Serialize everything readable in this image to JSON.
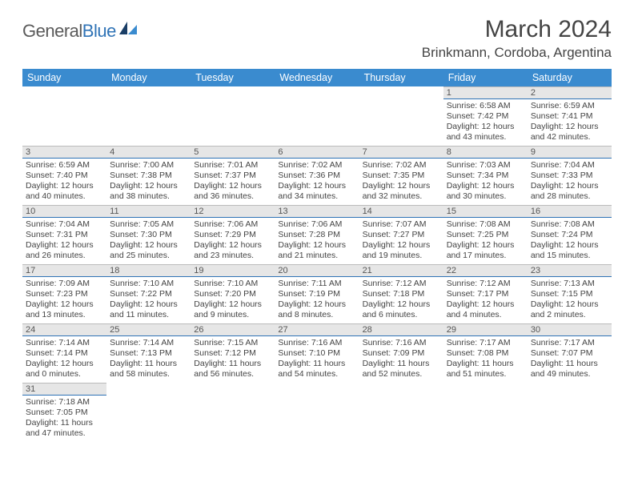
{
  "logo": {
    "text1": "General",
    "text2": "Blue",
    "accent": "#2f73b6",
    "dark": "#1a3e66"
  },
  "header": {
    "month_title": "March 2024",
    "location": "Brinkmann, Cordoba, Argentina"
  },
  "styling": {
    "header_bg": "#3a8bcf",
    "header_text": "#ffffff",
    "daynum_bg": "#e6e6e6",
    "daynum_border": "#2f73b6",
    "body_text": "#444444",
    "page_bg": "#ffffff",
    "day_font_size": 10.5,
    "header_font_size": 12.5,
    "title_font_size": 30,
    "location_font_size": 17
  },
  "columns": [
    "Sunday",
    "Monday",
    "Tuesday",
    "Wednesday",
    "Thursday",
    "Friday",
    "Saturday"
  ],
  "weeks": [
    [
      {
        "day": null
      },
      {
        "day": null
      },
      {
        "day": null
      },
      {
        "day": null
      },
      {
        "day": null
      },
      {
        "day": 1,
        "sunrise": "6:58 AM",
        "sunset": "7:42 PM",
        "daylight": "12 hours and 43 minutes."
      },
      {
        "day": 2,
        "sunrise": "6:59 AM",
        "sunset": "7:41 PM",
        "daylight": "12 hours and 42 minutes."
      }
    ],
    [
      {
        "day": 3,
        "sunrise": "6:59 AM",
        "sunset": "7:40 PM",
        "daylight": "12 hours and 40 minutes."
      },
      {
        "day": 4,
        "sunrise": "7:00 AM",
        "sunset": "7:38 PM",
        "daylight": "12 hours and 38 minutes."
      },
      {
        "day": 5,
        "sunrise": "7:01 AM",
        "sunset": "7:37 PM",
        "daylight": "12 hours and 36 minutes."
      },
      {
        "day": 6,
        "sunrise": "7:02 AM",
        "sunset": "7:36 PM",
        "daylight": "12 hours and 34 minutes."
      },
      {
        "day": 7,
        "sunrise": "7:02 AM",
        "sunset": "7:35 PM",
        "daylight": "12 hours and 32 minutes."
      },
      {
        "day": 8,
        "sunrise": "7:03 AM",
        "sunset": "7:34 PM",
        "daylight": "12 hours and 30 minutes."
      },
      {
        "day": 9,
        "sunrise": "7:04 AM",
        "sunset": "7:33 PM",
        "daylight": "12 hours and 28 minutes."
      }
    ],
    [
      {
        "day": 10,
        "sunrise": "7:04 AM",
        "sunset": "7:31 PM",
        "daylight": "12 hours and 26 minutes."
      },
      {
        "day": 11,
        "sunrise": "7:05 AM",
        "sunset": "7:30 PM",
        "daylight": "12 hours and 25 minutes."
      },
      {
        "day": 12,
        "sunrise": "7:06 AM",
        "sunset": "7:29 PM",
        "daylight": "12 hours and 23 minutes."
      },
      {
        "day": 13,
        "sunrise": "7:06 AM",
        "sunset": "7:28 PM",
        "daylight": "12 hours and 21 minutes."
      },
      {
        "day": 14,
        "sunrise": "7:07 AM",
        "sunset": "7:27 PM",
        "daylight": "12 hours and 19 minutes."
      },
      {
        "day": 15,
        "sunrise": "7:08 AM",
        "sunset": "7:25 PM",
        "daylight": "12 hours and 17 minutes."
      },
      {
        "day": 16,
        "sunrise": "7:08 AM",
        "sunset": "7:24 PM",
        "daylight": "12 hours and 15 minutes."
      }
    ],
    [
      {
        "day": 17,
        "sunrise": "7:09 AM",
        "sunset": "7:23 PM",
        "daylight": "12 hours and 13 minutes."
      },
      {
        "day": 18,
        "sunrise": "7:10 AM",
        "sunset": "7:22 PM",
        "daylight": "12 hours and 11 minutes."
      },
      {
        "day": 19,
        "sunrise": "7:10 AM",
        "sunset": "7:20 PM",
        "daylight": "12 hours and 9 minutes."
      },
      {
        "day": 20,
        "sunrise": "7:11 AM",
        "sunset": "7:19 PM",
        "daylight": "12 hours and 8 minutes."
      },
      {
        "day": 21,
        "sunrise": "7:12 AM",
        "sunset": "7:18 PM",
        "daylight": "12 hours and 6 minutes."
      },
      {
        "day": 22,
        "sunrise": "7:12 AM",
        "sunset": "7:17 PM",
        "daylight": "12 hours and 4 minutes."
      },
      {
        "day": 23,
        "sunrise": "7:13 AM",
        "sunset": "7:15 PM",
        "daylight": "12 hours and 2 minutes."
      }
    ],
    [
      {
        "day": 24,
        "sunrise": "7:14 AM",
        "sunset": "7:14 PM",
        "daylight": "12 hours and 0 minutes."
      },
      {
        "day": 25,
        "sunrise": "7:14 AM",
        "sunset": "7:13 PM",
        "daylight": "11 hours and 58 minutes."
      },
      {
        "day": 26,
        "sunrise": "7:15 AM",
        "sunset": "7:12 PM",
        "daylight": "11 hours and 56 minutes."
      },
      {
        "day": 27,
        "sunrise": "7:16 AM",
        "sunset": "7:10 PM",
        "daylight": "11 hours and 54 minutes."
      },
      {
        "day": 28,
        "sunrise": "7:16 AM",
        "sunset": "7:09 PM",
        "daylight": "11 hours and 52 minutes."
      },
      {
        "day": 29,
        "sunrise": "7:17 AM",
        "sunset": "7:08 PM",
        "daylight": "11 hours and 51 minutes."
      },
      {
        "day": 30,
        "sunrise": "7:17 AM",
        "sunset": "7:07 PM",
        "daylight": "11 hours and 49 minutes."
      }
    ],
    [
      {
        "day": 31,
        "sunrise": "7:18 AM",
        "sunset": "7:05 PM",
        "daylight": "11 hours and 47 minutes."
      },
      {
        "day": null
      },
      {
        "day": null
      },
      {
        "day": null
      },
      {
        "day": null
      },
      {
        "day": null
      },
      {
        "day": null
      }
    ]
  ],
  "labels": {
    "sunrise": "Sunrise:",
    "sunset": "Sunset:",
    "daylight": "Daylight:"
  }
}
